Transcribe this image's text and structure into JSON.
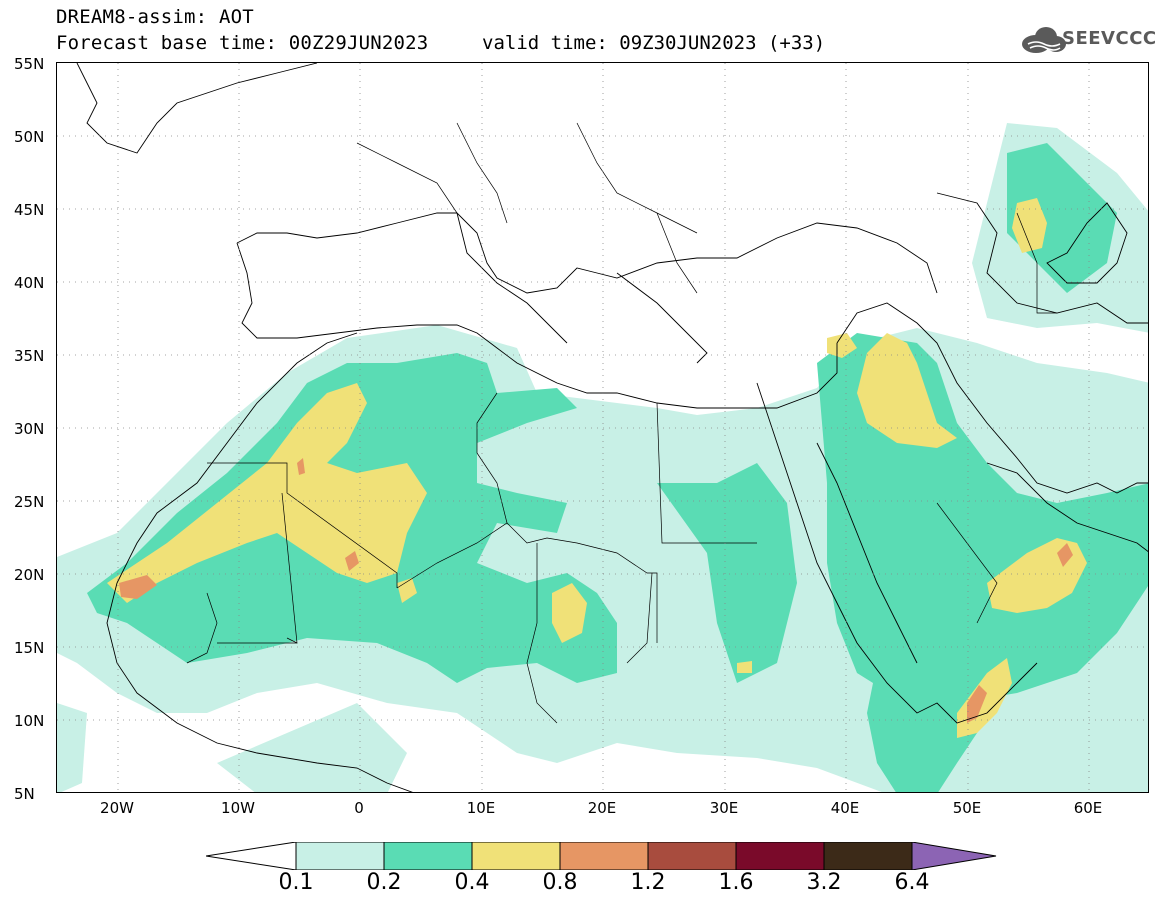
{
  "header": {
    "title": "DREAM8-assim: AOT",
    "base_time": "Forecast base time: 00Z29JUN2023",
    "valid_time": "valid time: 09Z30JUN2023 (+33)",
    "logo_text": "SEEVCCC"
  },
  "map": {
    "lat_labels": [
      "55N",
      "50N",
      "45N",
      "40N",
      "35N",
      "30N",
      "25N",
      "20N",
      "15N",
      "10N",
      "5N"
    ],
    "lon_labels": [
      "20W",
      "10W",
      "0",
      "10E",
      "20E",
      "30E",
      "40E",
      "50E",
      "60E"
    ],
    "lat_range": [
      5,
      55
    ],
    "lon_range": [
      -25,
      65
    ]
  },
  "colorbar": {
    "labels": [
      "0.1",
      "0.2",
      "0.4",
      "0.8",
      "1.2",
      "1.6",
      "3.2",
      "6.4"
    ],
    "colors": [
      "#c8f0e6",
      "#5adcb4",
      "#f0e178",
      "#e69664",
      "#a84c3e",
      "#7a0a2a",
      "#3c2a18",
      "#8c64b4"
    ]
  },
  "colors": {
    "level1": "#c8f0e6",
    "level2": "#5adcb4",
    "level3": "#f0e178",
    "level4": "#e69664",
    "level5": "#a84c3e"
  }
}
